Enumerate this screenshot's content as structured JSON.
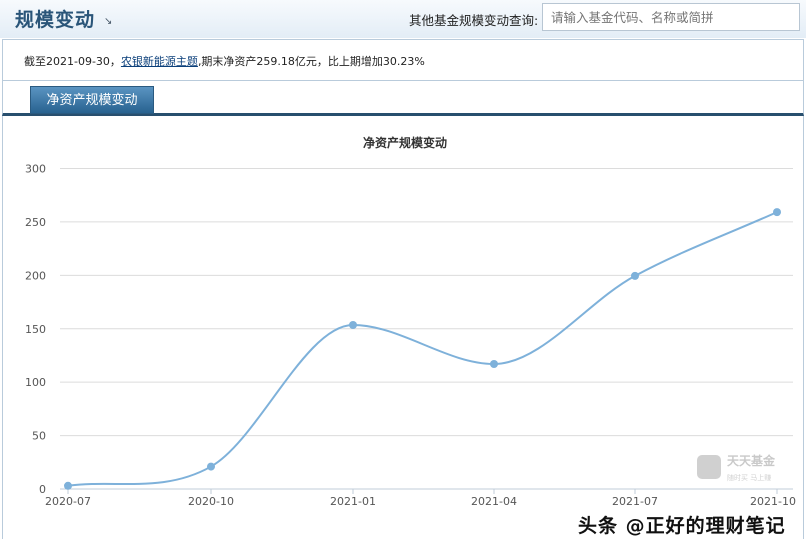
{
  "header": {
    "title": "规模变动",
    "query_label": "其他基金规模变动查询:",
    "search_placeholder": "请输入基金代码、名称或简拼"
  },
  "info": {
    "prefix": "截至2021-09-30，",
    "fund_name": "农银新能源主题",
    "suffix": ",期末净资产259.18亿元，比上期增加30.23%"
  },
  "tabs": [
    {
      "label": "净资产规模变动",
      "active": true
    }
  ],
  "chart_data": {
    "type": "line",
    "title": "净资产规模变动",
    "categories": [
      "2020-07",
      "2020-10",
      "2021-01",
      "2021-04",
      "2021-07",
      "2021-10"
    ],
    "values": [
      3,
      21,
      153.5,
      117,
      199.5,
      259.18
    ],
    "ylim": [
      0,
      300
    ],
    "yticks": [
      0,
      50,
      100,
      150,
      200,
      250,
      300
    ],
    "grid": true,
    "smooth": true,
    "color": "#7eb1da"
  },
  "logo": {
    "name": "天天基金",
    "tagline": "随时买 马上赚"
  },
  "watermark": "头条 @正好的理财笔记"
}
